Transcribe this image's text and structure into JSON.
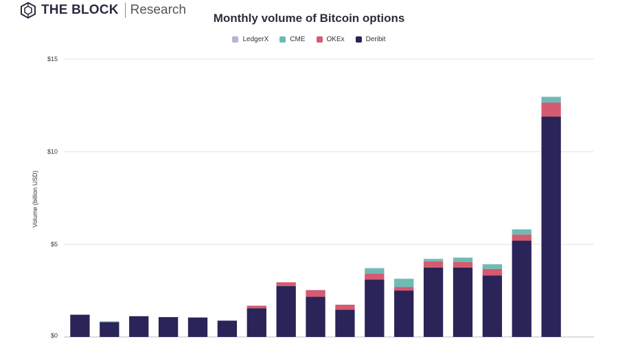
{
  "brand": {
    "name": "THE BLOCK",
    "sub": "Research"
  },
  "chart_data": {
    "type": "bar",
    "stacked": true,
    "title": "Monthly volume of Bitcoin options",
    "xlabel": "",
    "ylabel": "Volume (billion USD)",
    "ylim": [
      0,
      15
    ],
    "yticks": [
      0,
      5,
      10,
      15
    ],
    "ytick_labels": [
      "$0",
      "$5",
      "$10",
      "$15"
    ],
    "grid": true,
    "legend_position": "top-center",
    "categories": [
      "",
      "",
      "",
      "",
      "",
      "",
      "",
      "",
      "",
      "",
      "",
      "",
      "",
      "",
      "",
      "",
      "",
      ""
    ],
    "series": [
      {
        "name": "Deribit",
        "color": "#2a2458",
        "values": [
          1.2,
          0.8,
          1.12,
          1.07,
          1.05,
          0.88,
          1.55,
          2.75,
          2.17,
          1.47,
          3.1,
          2.5,
          3.75,
          3.75,
          3.32,
          5.2,
          11.9,
          0
        ]
      },
      {
        "name": "OKEx",
        "color": "#d65a70",
        "values": [
          0,
          0,
          0,
          0,
          0,
          0,
          0.13,
          0.2,
          0.35,
          0.27,
          0.32,
          0.2,
          0.33,
          0.3,
          0.35,
          0.33,
          0.75,
          0
        ]
      },
      {
        "name": "CME",
        "color": "#6cbcb3",
        "values": [
          0,
          0.04,
          0,
          0,
          0,
          0,
          0,
          0,
          0,
          0,
          0.28,
          0.44,
          0.12,
          0.22,
          0.25,
          0.27,
          0.3,
          0
        ]
      },
      {
        "name": "LedgerX",
        "color": "#b8b2d8",
        "values": [
          0,
          0,
          0,
          0,
          0,
          0,
          0.02,
          0,
          0.02,
          0,
          0.02,
          0,
          0.02,
          0.02,
          0.01,
          0.01,
          0.02,
          0
        ]
      }
    ],
    "legend_order": [
      "LedgerX",
      "CME",
      "OKEx",
      "Deribit"
    ]
  }
}
